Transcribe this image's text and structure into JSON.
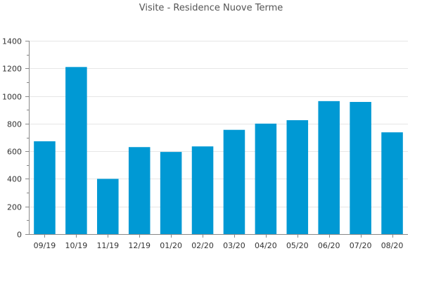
{
  "chart_data": {
    "type": "bar",
    "title": "Visite - Residence Nuove Terme",
    "xlabel": "",
    "ylabel": "",
    "categories": [
      "09/19",
      "10/19",
      "11/19",
      "12/19",
      "01/20",
      "02/20",
      "03/20",
      "04/20",
      "05/20",
      "06/20",
      "07/20",
      "08/20"
    ],
    "values": [
      672,
      1210,
      400,
      630,
      595,
      635,
      755,
      800,
      825,
      963,
      957,
      737
    ],
    "ylim": [
      0,
      1400
    ],
    "yticks": [
      0,
      200,
      400,
      600,
      800,
      1000,
      1200,
      1400
    ],
    "ytick_labels": [
      "0",
      "200",
      "400",
      "600",
      "800",
      "1000",
      "1200",
      "1400"
    ],
    "grid": true,
    "bar_color": "#0099d4"
  }
}
